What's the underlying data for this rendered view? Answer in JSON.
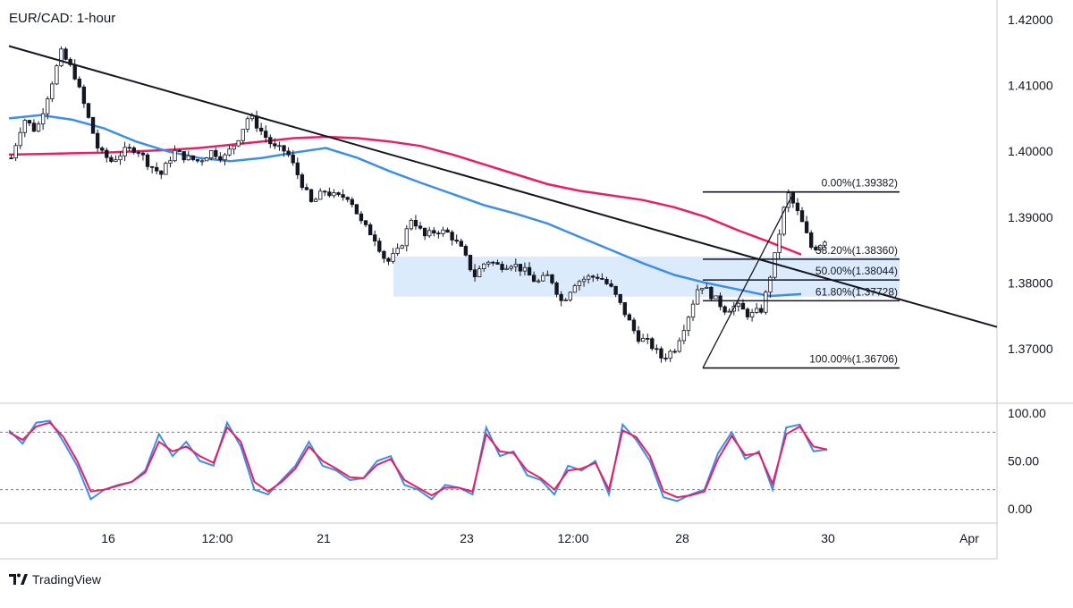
{
  "chart_data": {
    "type": "candlestick",
    "title": "EUR/CAD: 1-hour",
    "price_axis": {
      "ticks": [
        "1.42000",
        "1.41000",
        "1.40000",
        "1.39000",
        "1.38000",
        "1.37000"
      ],
      "tick_values": [
        1.42,
        1.41,
        1.4,
        1.39,
        1.38,
        1.37
      ],
      "range": [
        1.3617,
        1.423
      ]
    },
    "time_axis": {
      "labels": [
        "16",
        "12:00",
        "21",
        "23",
        "12:00",
        "28",
        "30",
        "Apr"
      ]
    },
    "price_path": [
      1.399,
      1.405,
      1.403,
      1.409,
      1.415,
      1.412,
      1.406,
      1.4,
      1.3985,
      1.4,
      1.4005,
      1.398,
      1.3965,
      1.4,
      1.399,
      1.3985,
      1.4,
      1.399,
      1.4015,
      1.4055,
      1.403,
      1.4005,
      1.4,
      1.396,
      1.392,
      1.394,
      1.393,
      1.3932,
      1.389,
      1.387,
      1.383,
      1.385,
      1.39,
      1.387,
      1.388,
      1.3875,
      1.385,
      1.381,
      1.3835,
      1.3825,
      1.383,
      1.3818,
      1.38,
      1.3812,
      1.377,
      1.38,
      1.3808,
      1.381,
      1.379,
      1.3755,
      1.3718,
      1.3708,
      1.3685,
      1.37,
      1.3745,
      1.38,
      1.378,
      1.376,
      1.3765,
      1.375,
      1.376,
      1.384,
      1.3938,
      1.39,
      1.385,
      1.3866
    ],
    "moving_averages": [
      {
        "name": "MA slow",
        "color": "#e91e63",
        "values": [
          1.3995,
          1.3996,
          1.3997,
          1.3998,
          1.4,
          1.4002,
          1.4005,
          1.401,
          1.4015,
          1.402,
          1.4022,
          1.402,
          1.4015,
          1.4008,
          1.3995,
          1.398,
          1.3965,
          1.395,
          1.394,
          1.3933,
          1.3926,
          1.3915,
          1.39,
          1.388,
          1.3862,
          1.3843
        ]
      },
      {
        "name": "MA fast",
        "color": "#3d8ee6",
        "values": [
          1.405,
          1.4055,
          1.4048,
          1.4035,
          1.4015,
          1.4,
          1.399,
          1.3985,
          1.399,
          1.3998,
          1.4005,
          1.399,
          1.397,
          1.3952,
          1.3935,
          1.3918,
          1.3905,
          1.389,
          1.387,
          1.385,
          1.383,
          1.3812,
          1.38,
          1.379,
          1.378,
          1.3783
        ]
      }
    ],
    "trendline": {
      "color": "#131722",
      "start": [
        0,
        1.416
      ],
      "end": [
        1,
        1.3733
      ]
    },
    "demand_zone": {
      "color": "#d6e8fb",
      "price_top": 1.384,
      "price_bottom": 1.3779,
      "x_start": 0.435,
      "x_end": 1
    },
    "fibonacci": {
      "swing_low": 1.36706,
      "swing_high": 1.39382,
      "levels": [
        {
          "ratio": "0.00%",
          "value": 1.39382,
          "label": "0.00%(1.39382)"
        },
        {
          "ratio": "38.20%",
          "value": 1.3836,
          "label": "38.20%(1.38360)"
        },
        {
          "ratio": "50.00%",
          "value": 1.38044,
          "label": "50.00%(1.38044)"
        },
        {
          "ratio": "61.80%",
          "value": 1.37728,
          "label": "61.80%(1.37728)"
        },
        {
          "ratio": "100.00%",
          "value": 1.36706,
          "label": "100.00%(1.36706)"
        }
      ]
    },
    "stochastic": {
      "ticks": [
        "100.00",
        "50.00",
        "0.00"
      ],
      "tick_values": [
        100,
        50,
        0
      ],
      "overbought": 80,
      "oversold": 20,
      "k_color": "#3d8ee6",
      "d_color": "#e91e63",
      "k_values": [
        82,
        68,
        90,
        92,
        70,
        45,
        10,
        20,
        25,
        28,
        40,
        78,
        55,
        70,
        50,
        45,
        90,
        65,
        20,
        15,
        30,
        45,
        70,
        45,
        40,
        30,
        32,
        50,
        55,
        25,
        20,
        10,
        25,
        22,
        15,
        85,
        55,
        60,
        35,
        30,
        15,
        45,
        40,
        50,
        15,
        88,
        72,
        50,
        12,
        8,
        15,
        20,
        58,
        80,
        52,
        60,
        20,
        85,
        88,
        60,
        62
      ],
      "d_values": [
        80,
        72,
        86,
        90,
        75,
        50,
        18,
        20,
        24,
        28,
        38,
        70,
        60,
        65,
        55,
        48,
        85,
        70,
        28,
        18,
        28,
        42,
        65,
        50,
        42,
        33,
        32,
        46,
        52,
        30,
        22,
        14,
        22,
        22,
        18,
        78,
        60,
        58,
        40,
        32,
        20,
        40,
        42,
        48,
        20,
        82,
        75,
        55,
        18,
        12,
        14,
        18,
        52,
        76,
        56,
        58,
        26,
        78,
        86,
        65,
        62
      ]
    },
    "colors": {
      "up": "#131722",
      "down": "#131722",
      "grid": "#e0e3eb",
      "background": "#ffffff"
    }
  },
  "branding": {
    "logo": "tradingview-logo",
    "name": "TradingView"
  }
}
